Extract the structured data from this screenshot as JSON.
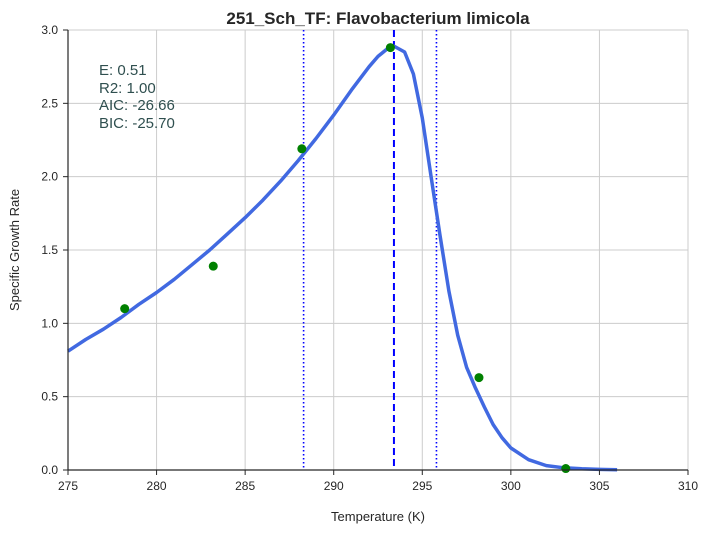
{
  "chart_data": {
    "type": "line",
    "title": "251_Sch_TF: Flavobacterium limicola",
    "xlabel": "Temperature (K)",
    "ylabel": "Specific Growth Rate",
    "xlim": [
      275,
      310
    ],
    "ylim": [
      0,
      3.0
    ],
    "xticks": [
      275,
      280,
      285,
      290,
      295,
      300,
      305,
      310
    ],
    "yticks": [
      0.0,
      0.5,
      1.0,
      1.5,
      2.0,
      2.5,
      3.0
    ],
    "xtick_labels": [
      "275",
      "280",
      "285",
      "290",
      "295",
      "300",
      "305",
      "310"
    ],
    "ytick_labels": [
      "0.0",
      "0.5",
      "1.0",
      "1.5",
      "2.0",
      "2.5",
      "3.0"
    ],
    "grid": true,
    "legend": "none",
    "stats": [
      "E:  0.51",
      "R2:  1.00",
      "AIC: -26.66",
      "BIC: -25.70"
    ],
    "series": [
      {
        "kind": "fitted-curve",
        "color": "#4169e1",
        "x": [
          275.0,
          276.0,
          277.0,
          278.0,
          279.0,
          280.0,
          281.0,
          282.0,
          283.0,
          284.0,
          285.0,
          286.0,
          287.0,
          288.0,
          289.0,
          290.0,
          291.0,
          292.0,
          292.5,
          293.0,
          293.4,
          294.0,
          294.5,
          295.0,
          295.5,
          296.0,
          296.5,
          297.0,
          297.5,
          298.0,
          298.5,
          299.0,
          299.5,
          300.0,
          301.0,
          302.0,
          303.0,
          304.0,
          305.0,
          306.0
        ],
        "y": [
          0.81,
          0.89,
          0.96,
          1.04,
          1.13,
          1.21,
          1.3,
          1.4,
          1.5,
          1.61,
          1.72,
          1.84,
          1.97,
          2.11,
          2.26,
          2.42,
          2.59,
          2.75,
          2.82,
          2.87,
          2.89,
          2.85,
          2.7,
          2.4,
          2.0,
          1.6,
          1.22,
          0.92,
          0.7,
          0.56,
          0.43,
          0.31,
          0.22,
          0.15,
          0.07,
          0.03,
          0.015,
          0.008,
          0.004,
          0.002
        ]
      },
      {
        "kind": "observations",
        "color": "#008000",
        "x": [
          278.2,
          283.2,
          288.2,
          293.2,
          298.2,
          303.1
        ],
        "y": [
          1.1,
          1.39,
          2.19,
          2.88,
          0.63,
          0.01
        ]
      }
    ],
    "vlines": [
      {
        "x": 288.3,
        "style": "dotted",
        "color": "#0000ff"
      },
      {
        "x": 293.4,
        "style": "dashed",
        "color": "#0000ff"
      },
      {
        "x": 295.8,
        "style": "dotted",
        "color": "#0000ff"
      }
    ]
  }
}
